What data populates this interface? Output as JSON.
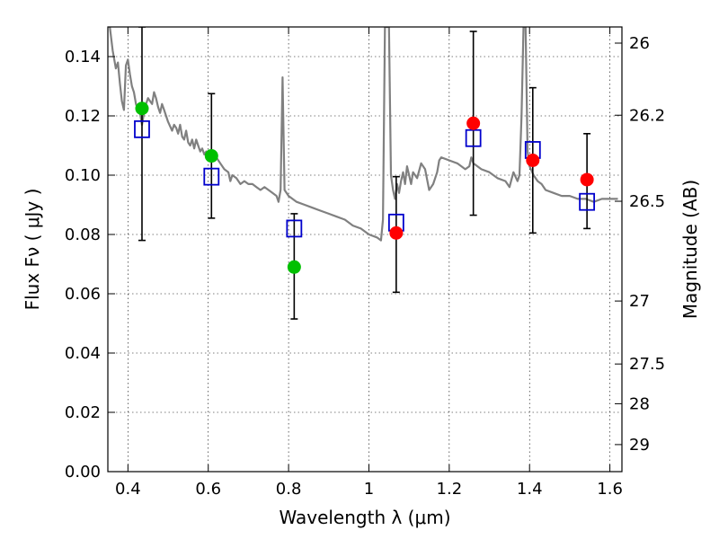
{
  "chart_data": {
    "type": "scatter",
    "xlabel": "Wavelength  λ (μm)",
    "ylabel": "Flux  Fν  ( μJy )",
    "y2label": "Magnitude (AB)",
    "xlim": [
      0.35,
      1.63
    ],
    "ylim": [
      0.0,
      0.15
    ],
    "grid": true,
    "x_ticks": [
      0.4,
      0.6,
      0.8,
      1.0,
      1.2,
      1.4,
      1.6
    ],
    "x_tick_labels": [
      "0.4",
      "0.6",
      "0.8",
      "1",
      "1.2",
      "1.4",
      "1.6"
    ],
    "y_ticks": [
      0.0,
      0.02,
      0.04,
      0.06,
      0.08,
      0.1,
      0.12,
      0.14
    ],
    "y_tick_labels": [
      "0.00",
      "0.02",
      "0.04",
      "0.06",
      "0.08",
      "0.10",
      "0.12",
      "0.14"
    ],
    "y2_ticks": [
      {
        "label": "26",
        "mag": 26
      },
      {
        "label": "26.2",
        "mag": 26.2
      },
      {
        "label": "26.5",
        "mag": 26.5
      },
      {
        "label": "27",
        "mag": 27
      },
      {
        "label": "27.5",
        "mag": 27.5
      },
      {
        "label": "28",
        "mag": 28
      },
      {
        "label": "29",
        "mag": 29
      }
    ],
    "series": [
      {
        "kind": "model_spectrum",
        "color": "#808080",
        "points": [
          [
            0.355,
            0.15
          ],
          [
            0.362,
            0.142
          ],
          [
            0.37,
            0.136
          ],
          [
            0.375,
            0.138
          ],
          [
            0.38,
            0.131
          ],
          [
            0.385,
            0.125
          ],
          [
            0.39,
            0.122
          ],
          [
            0.395,
            0.137
          ],
          [
            0.4,
            0.139
          ],
          [
            0.405,
            0.134
          ],
          [
            0.41,
            0.13
          ],
          [
            0.415,
            0.128
          ],
          [
            0.42,
            0.124
          ],
          [
            0.425,
            0.122
          ],
          [
            0.43,
            0.121
          ],
          [
            0.435,
            0.117
          ],
          [
            0.44,
            0.121
          ],
          [
            0.445,
            0.124
          ],
          [
            0.45,
            0.126
          ],
          [
            0.455,
            0.125
          ],
          [
            0.46,
            0.124
          ],
          [
            0.465,
            0.128
          ],
          [
            0.47,
            0.126
          ],
          [
            0.475,
            0.123
          ],
          [
            0.48,
            0.121
          ],
          [
            0.485,
            0.124
          ],
          [
            0.49,
            0.122
          ],
          [
            0.495,
            0.12
          ],
          [
            0.5,
            0.118
          ],
          [
            0.51,
            0.115
          ],
          [
            0.515,
            0.117
          ],
          [
            0.52,
            0.116
          ],
          [
            0.525,
            0.114
          ],
          [
            0.53,
            0.117
          ],
          [
            0.535,
            0.113
          ],
          [
            0.54,
            0.112
          ],
          [
            0.545,
            0.115
          ],
          [
            0.55,
            0.111
          ],
          [
            0.555,
            0.11
          ],
          [
            0.56,
            0.112
          ],
          [
            0.565,
            0.109
          ],
          [
            0.57,
            0.112
          ],
          [
            0.575,
            0.11
          ],
          [
            0.58,
            0.108
          ],
          [
            0.585,
            0.109
          ],
          [
            0.59,
            0.107
          ],
          [
            0.595,
            0.108
          ],
          [
            0.6,
            0.106
          ],
          [
            0.61,
            0.105
          ],
          [
            0.62,
            0.106
          ],
          [
            0.63,
            0.104
          ],
          [
            0.64,
            0.102
          ],
          [
            0.65,
            0.101
          ],
          [
            0.655,
            0.098
          ],
          [
            0.66,
            0.1
          ],
          [
            0.67,
            0.099
          ],
          [
            0.68,
            0.097
          ],
          [
            0.69,
            0.098
          ],
          [
            0.7,
            0.097
          ],
          [
            0.71,
            0.097
          ],
          [
            0.72,
            0.096
          ],
          [
            0.73,
            0.095
          ],
          [
            0.74,
            0.096
          ],
          [
            0.75,
            0.095
          ],
          [
            0.76,
            0.094
          ],
          [
            0.77,
            0.093
          ],
          [
            0.775,
            0.091
          ],
          [
            0.78,
            0.095
          ],
          [
            0.785,
            0.133
          ],
          [
            0.79,
            0.095
          ],
          [
            0.8,
            0.093
          ],
          [
            0.82,
            0.091
          ],
          [
            0.84,
            0.09
          ],
          [
            0.86,
            0.089
          ],
          [
            0.88,
            0.088
          ],
          [
            0.9,
            0.087
          ],
          [
            0.92,
            0.086
          ],
          [
            0.94,
            0.085
          ],
          [
            0.96,
            0.083
          ],
          [
            0.98,
            0.082
          ],
          [
            1.0,
            0.08
          ],
          [
            1.02,
            0.079
          ],
          [
            1.03,
            0.078
          ],
          [
            1.035,
            0.085
          ],
          [
            1.04,
            0.15
          ],
          [
            1.05,
            0.15
          ],
          [
            1.055,
            0.1
          ],
          [
            1.06,
            0.095
          ],
          [
            1.065,
            0.092
          ],
          [
            1.07,
            0.097
          ],
          [
            1.075,
            0.094
          ],
          [
            1.08,
            0.098
          ],
          [
            1.085,
            0.101
          ],
          [
            1.09,
            0.097
          ],
          [
            1.095,
            0.103
          ],
          [
            1.1,
            0.1
          ],
          [
            1.105,
            0.097
          ],
          [
            1.11,
            0.101
          ],
          [
            1.12,
            0.099
          ],
          [
            1.13,
            0.104
          ],
          [
            1.14,
            0.102
          ],
          [
            1.15,
            0.095
          ],
          [
            1.16,
            0.097
          ],
          [
            1.17,
            0.101
          ],
          [
            1.175,
            0.105
          ],
          [
            1.18,
            0.106
          ],
          [
            1.2,
            0.105
          ],
          [
            1.22,
            0.104
          ],
          [
            1.24,
            0.102
          ],
          [
            1.25,
            0.103
          ],
          [
            1.255,
            0.106
          ],
          [
            1.26,
            0.104
          ],
          [
            1.28,
            0.102
          ],
          [
            1.3,
            0.101
          ],
          [
            1.32,
            0.099
          ],
          [
            1.34,
            0.098
          ],
          [
            1.35,
            0.096
          ],
          [
            1.36,
            0.101
          ],
          [
            1.37,
            0.098
          ],
          [
            1.375,
            0.1
          ],
          [
            1.38,
            0.12
          ],
          [
            1.385,
            0.15
          ],
          [
            1.39,
            0.15
          ],
          [
            1.395,
            0.108
          ],
          [
            1.4,
            0.103
          ],
          [
            1.41,
            0.1
          ],
          [
            1.42,
            0.098
          ],
          [
            1.43,
            0.097
          ],
          [
            1.44,
            0.095
          ],
          [
            1.46,
            0.094
          ],
          [
            1.48,
            0.093
          ],
          [
            1.5,
            0.093
          ],
          [
            1.52,
            0.092
          ],
          [
            1.54,
            0.092
          ],
          [
            1.56,
            0.091
          ],
          [
            1.58,
            0.092
          ],
          [
            1.6,
            0.092
          ],
          [
            1.62,
            0.092
          ]
        ]
      },
      {
        "kind": "model_photometry",
        "marker": "open-square",
        "color": "#0000cc",
        "points": [
          [
            0.435,
            0.1155
          ],
          [
            0.608,
            0.0995
          ],
          [
            0.814,
            0.082
          ],
          [
            1.068,
            0.084
          ],
          [
            1.26,
            0.1125
          ],
          [
            1.408,
            0.1085
          ],
          [
            1.543,
            0.091
          ]
        ]
      },
      {
        "kind": "observed_flux",
        "marker": "filled-circle",
        "color": "#00c000",
        "points": [
          [
            0.435,
            0.1225
          ],
          [
            0.608,
            0.1065
          ],
          [
            0.814,
            0.069
          ]
        ]
      },
      {
        "kind": "observed_flux",
        "marker": "filled-circle",
        "color": "#ff0000",
        "points": [
          [
            1.068,
            0.0805
          ],
          [
            1.26,
            0.1175
          ],
          [
            1.408,
            0.105
          ],
          [
            1.543,
            0.0985
          ]
        ]
      },
      {
        "kind": "error_bars",
        "color": "#000000",
        "bars": [
          {
            "x": 0.435,
            "low": 0.078,
            "high": 0.15
          },
          {
            "x": 0.608,
            "low": 0.0855,
            "high": 0.1275
          },
          {
            "x": 0.814,
            "low": 0.0515,
            "high": 0.087
          },
          {
            "x": 1.068,
            "low": 0.0605,
            "high": 0.0995
          },
          {
            "x": 1.26,
            "low": 0.0865,
            "high": 0.1485
          },
          {
            "x": 1.408,
            "low": 0.0805,
            "high": 0.1295
          },
          {
            "x": 1.543,
            "low": 0.082,
            "high": 0.114
          }
        ]
      }
    ]
  }
}
